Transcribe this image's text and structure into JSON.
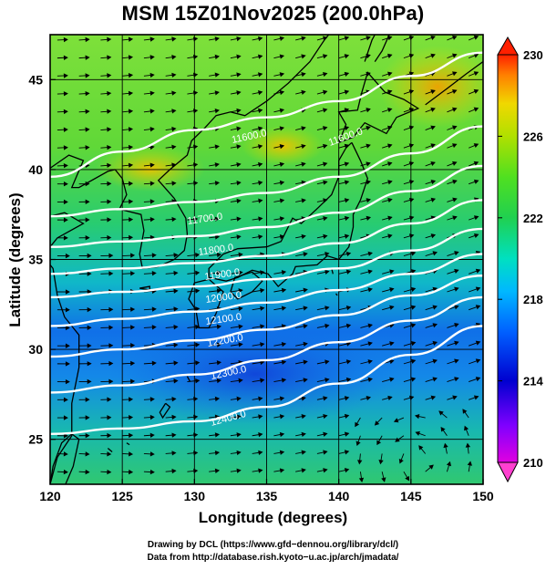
{
  "title": "MSM 15Z01Nov2025 (200.0hPa)",
  "x_axis": {
    "label": "Longitude (degrees)",
    "ticks": [
      "120",
      "125",
      "130",
      "135",
      "140",
      "145",
      "150"
    ],
    "range": [
      120,
      150
    ]
  },
  "y_axis": {
    "label": "Latitude  (degrees)",
    "ticks": [
      "25",
      "30",
      "35",
      "40",
      "45"
    ],
    "range": [
      22.5,
      47.5
    ]
  },
  "colorbar": {
    "ticks": [
      "230",
      "226",
      "222",
      "218",
      "214",
      "210"
    ],
    "range": [
      210,
      230
    ],
    "colors": [
      "#e000e0",
      "#7000ff",
      "#0000d0",
      "#0060ff",
      "#00b8ff",
      "#00e8b0",
      "#20d050",
      "#50e020",
      "#a0e000",
      "#f0e000",
      "#ff9000",
      "#ff2000"
    ]
  },
  "contour_labels": [
    "11600.0",
    "11700.0",
    "11800.0",
    "11900.0",
    "12000.0",
    "12100.0",
    "12200.0",
    "12300.0",
    "12400.0"
  ],
  "credits": [
    "Drawing by DCL (https://www.gfd−dennou.org/library/dcl/)",
    "Data from http://database.rish.kyoto−u.ac.jp/arch/jmadata/"
  ],
  "colors": {
    "contour": "#ffffff",
    "vector": "#000000",
    "coast": "#000000"
  },
  "chart_data": {
    "type": "heatmap",
    "title": "MSM 15Z01Nov2025 (200.0hPa)",
    "xlabel": "Longitude (degrees)",
    "ylabel": "Latitude  (degrees)",
    "xlim": [
      120,
      150
    ],
    "ylim": [
      22.5,
      47.5
    ],
    "color_range": [
      210,
      230
    ],
    "color_ticks": [
      210,
      214,
      218,
      222,
      226,
      230
    ],
    "contours": [
      {
        "label": "11600.0",
        "y": [
          39.6,
          41.0,
          42.2,
          42.9,
          43.8,
          45.2,
          46.5
        ]
      },
      {
        "label": "11700.0",
        "y": [
          37.4,
          37.8,
          38.2,
          38.7,
          39.6,
          40.9,
          42.4
        ]
      },
      {
        "label": "11800.0",
        "y": [
          35.7,
          36.0,
          36.3,
          36.8,
          37.6,
          38.8,
          40.2
        ]
      },
      {
        "label": "11900.0",
        "y": [
          34.2,
          34.5,
          34.8,
          35.2,
          35.9,
          37.0,
          38.3
        ]
      },
      {
        "label": "12000.0",
        "y": [
          32.9,
          33.2,
          33.5,
          33.9,
          34.5,
          35.5,
          36.7
        ]
      },
      {
        "label": "12100.0",
        "y": [
          31.3,
          31.7,
          32.1,
          32.6,
          33.3,
          34.2,
          35.3
        ]
      },
      {
        "label": "12200.0",
        "y": [
          29.6,
          30.0,
          30.5,
          31.1,
          31.9,
          33.0,
          34.1
        ]
      },
      {
        "label": "12300.0",
        "y": [
          27.6,
          28.0,
          28.6,
          29.4,
          30.4,
          31.6,
          32.9
        ]
      },
      {
        "label": "12400.0",
        "y": [
          25.3,
          25.6,
          26.0,
          26.8,
          28.1,
          29.7,
          31.3
        ]
      }
    ],
    "contour_x": [
      120,
      125,
      130,
      135,
      140,
      145,
      150
    ],
    "wind": "westerly jet, northeastward turning east of 145E; anticyclonic circulation near 145E 24N"
  }
}
